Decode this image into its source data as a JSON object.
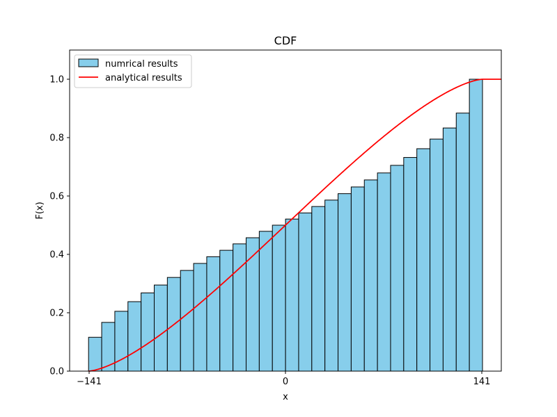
{
  "chart_data": {
    "type": "bar",
    "title": "CDF",
    "xlabel": "x",
    "ylabel": "F(x)",
    "xlim": [
      -155,
      155
    ],
    "ylim": [
      0,
      1.1
    ],
    "xticks": [
      -141,
      0,
      141
    ],
    "xtick_labels": [
      "−141",
      "0",
      "141"
    ],
    "yticks": [
      0.0,
      0.2,
      0.4,
      0.6,
      0.8,
      1.0
    ],
    "ytick_labels": [
      "0.0",
      "0.2",
      "0.4",
      "0.6",
      "0.8",
      "1.0"
    ],
    "grid": false,
    "legend_position": "top-left",
    "series": [
      {
        "name": "numrical results",
        "kind": "histogram",
        "color": "#87CEEB",
        "edgecolor": "#000000",
        "bin_edges": [
          -141.4,
          -131.97,
          -122.54,
          -113.11,
          -103.68,
          -94.25,
          -84.82,
          -75.39,
          -65.96,
          -56.53,
          -47.1,
          -37.67,
          -28.24,
          -18.81,
          -9.38,
          0.05,
          9.48,
          18.91,
          28.34,
          37.77,
          47.2,
          56.63,
          66.06,
          75.49,
          84.92,
          94.35,
          103.78,
          113.21,
          122.64,
          132.07,
          141.5
        ],
        "values": [
          0.116,
          0.167,
          0.205,
          0.238,
          0.268,
          0.295,
          0.321,
          0.345,
          0.369,
          0.392,
          0.414,
          0.436,
          0.457,
          0.479,
          0.5,
          0.521,
          0.542,
          0.564,
          0.586,
          0.608,
          0.631,
          0.655,
          0.679,
          0.705,
          0.732,
          0.762,
          0.795,
          0.833,
          0.884,
          1.0
        ]
      },
      {
        "name": "analytical results",
        "kind": "line",
        "color": "#FF0000",
        "note_formula": "F(x) = 0.5 + (x·sqrt(R² − x²) + R²·asin(x/R)) / (πR²), R = 141.42"
      }
    ]
  }
}
